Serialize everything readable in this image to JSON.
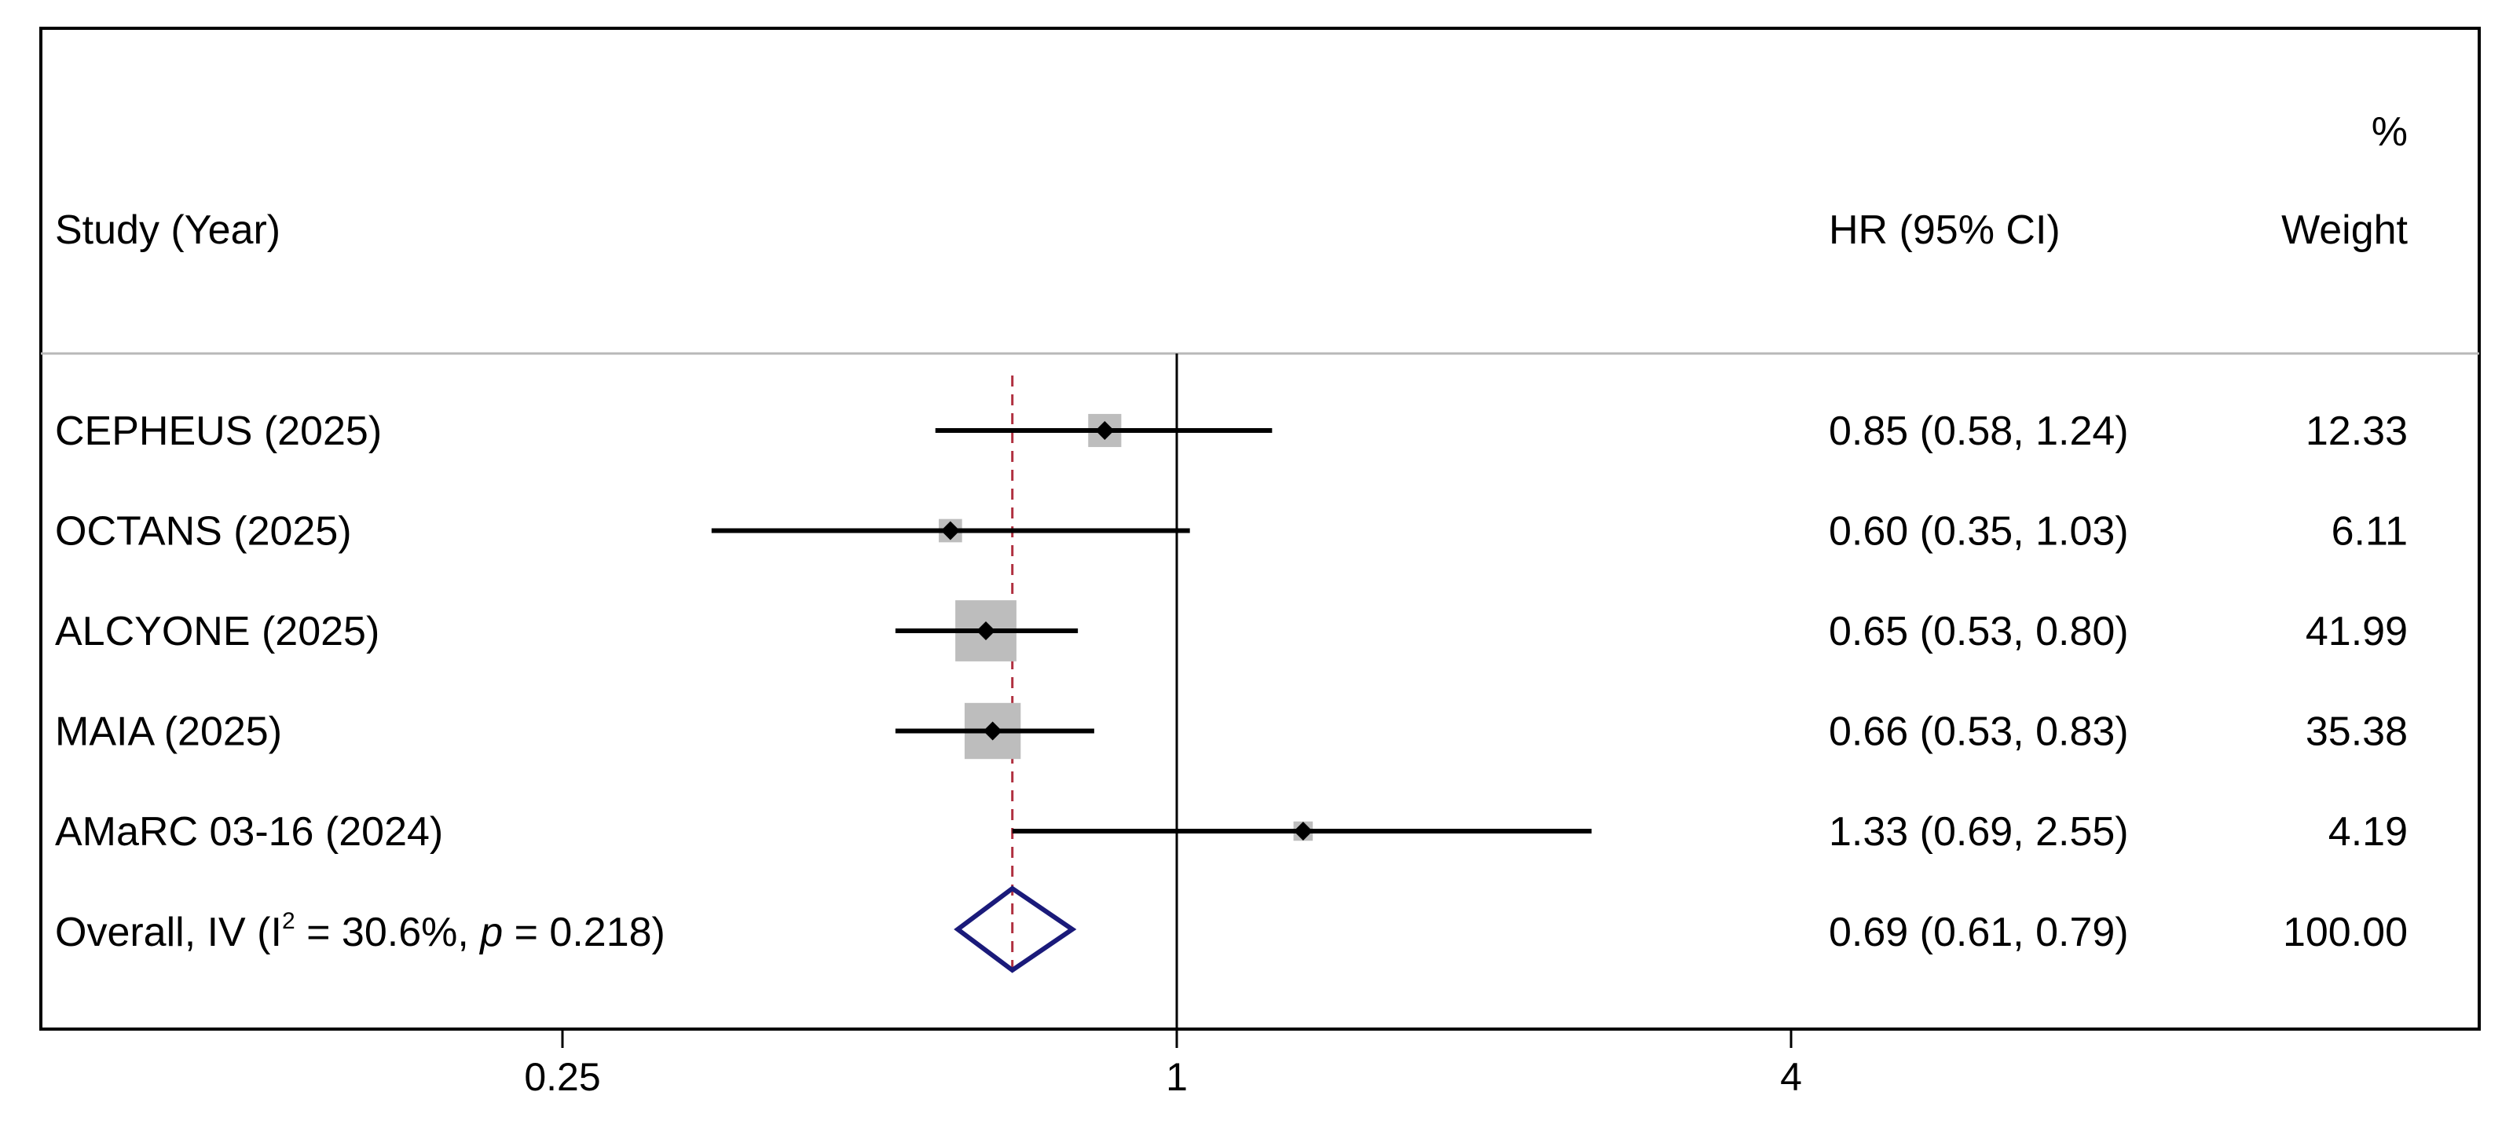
{
  "header": {
    "study_label": "Study (Year)",
    "estimate_label": "HR (95% CI)",
    "weight_label_top": "%",
    "weight_label_bottom": "Weight"
  },
  "overall": {
    "label_prefix": "Overall, IV (I",
    "label_sup": "2",
    "label_mid": " = 30.6%, ",
    "label_p": "p",
    "label_suffix": " = 0.218)",
    "hr": 0.69,
    "lo": 0.61,
    "hi": 0.79,
    "ci_text": "0.69 (0.61, 0.79)",
    "weight_text": "100.00"
  },
  "chart_data": {
    "type": "forest",
    "scale": "log",
    "xlim": [
      0.22,
      4.6
    ],
    "xticks": [
      {
        "value": 0.25,
        "label": "0.25"
      },
      {
        "value": 1,
        "label": "1"
      },
      {
        "value": 4,
        "label": "4"
      }
    ],
    "null_line": 1,
    "studies": [
      {
        "label": "CEPHEUS (2025)",
        "hr": 0.85,
        "lo": 0.58,
        "hi": 1.24,
        "ci_text": "0.85 (0.58, 1.24)",
        "weight": 12.33,
        "weight_text": "12.33"
      },
      {
        "label": "OCTANS (2025)",
        "hr": 0.6,
        "lo": 0.35,
        "hi": 1.03,
        "ci_text": "0.60 (0.35, 1.03)",
        "weight": 6.11,
        "weight_text": "6.11"
      },
      {
        "label": "ALCYONE (2025)",
        "hr": 0.65,
        "lo": 0.53,
        "hi": 0.8,
        "ci_text": "0.65 (0.53, 0.80)",
        "weight": 41.99,
        "weight_text": "41.99"
      },
      {
        "label": "MAIA (2025)",
        "hr": 0.66,
        "lo": 0.53,
        "hi": 0.83,
        "ci_text": "0.66 (0.53, 0.83)",
        "weight": 35.38,
        "weight_text": "35.38"
      },
      {
        "label": "AMaRC 03-16 (2024)",
        "hr": 1.33,
        "lo": 0.69,
        "hi": 2.55,
        "ci_text": "1.33 (0.69, 2.55)",
        "weight": 4.19,
        "weight_text": "4.19"
      }
    ],
    "colors": {
      "ci_line": "#000000",
      "weight_box": "#bdbdbd",
      "point": "#000000",
      "overall_diamond": "#1a1a7a",
      "overall_line": "#b03040",
      "separator": "#b8b8b8",
      "frame": "#000000"
    }
  }
}
